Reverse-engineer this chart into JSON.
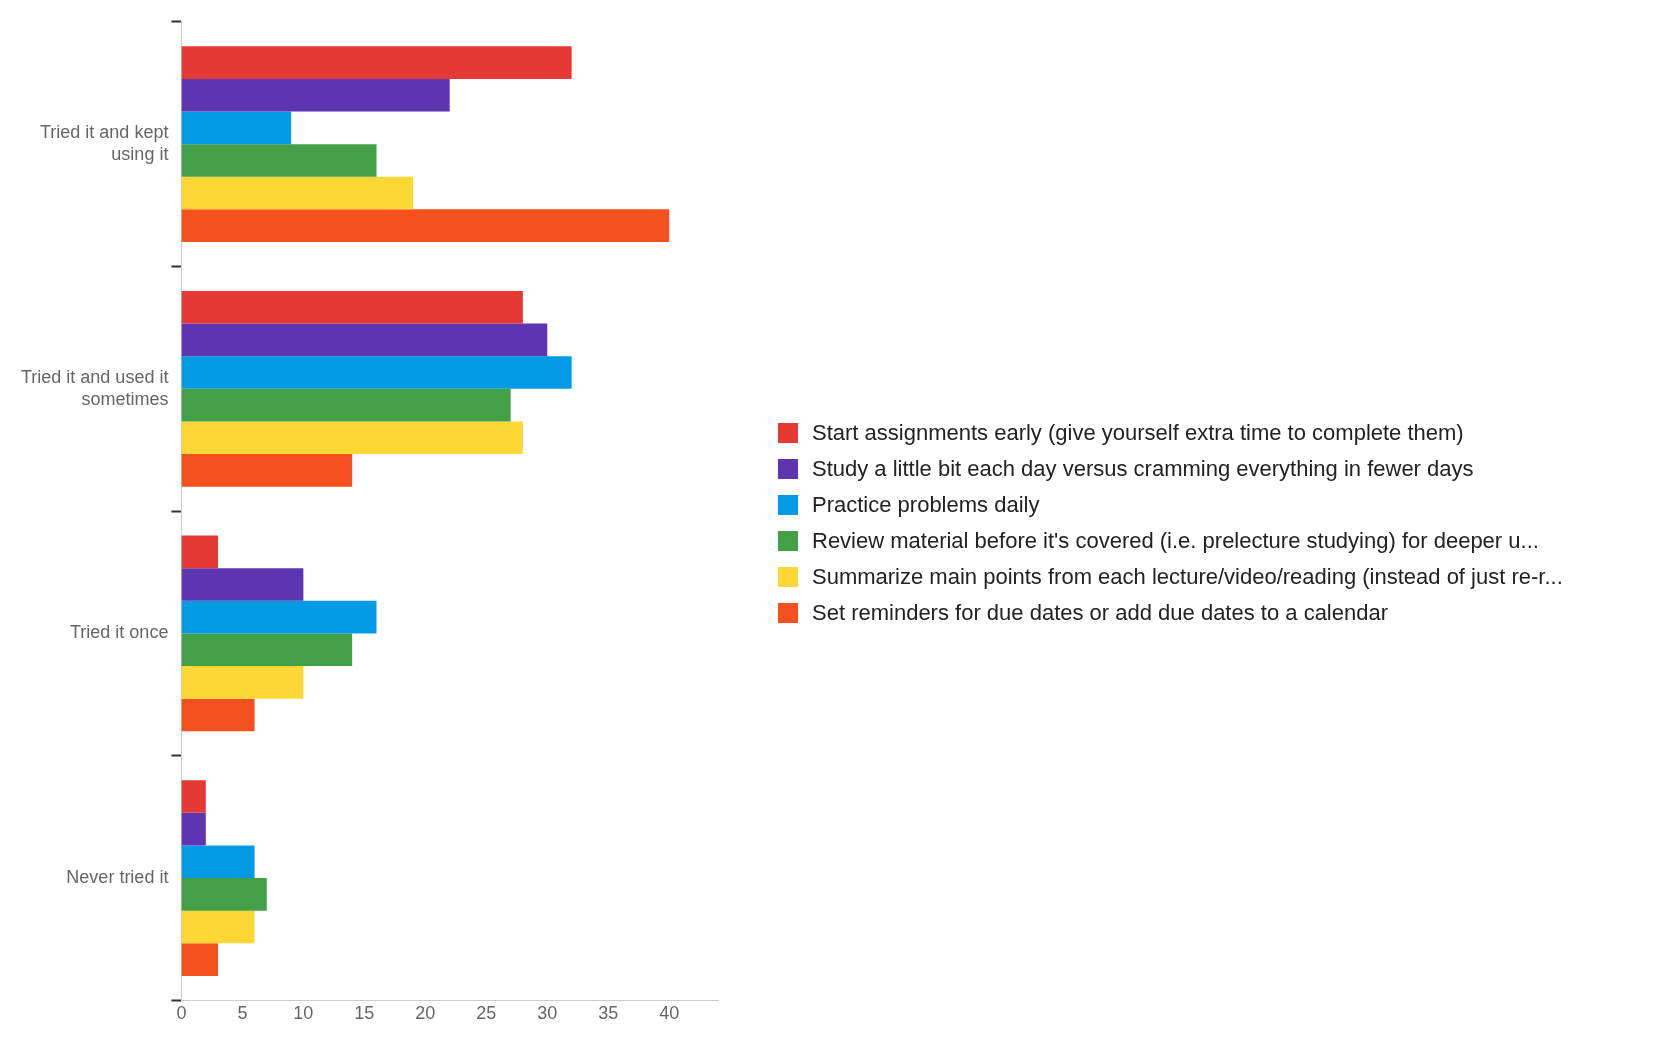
{
  "chart_data": {
    "type": "bar",
    "orientation": "horizontal",
    "categories": [
      "Tried it and kept using it",
      "Tried it and used it sometimes",
      "Tried it once",
      "Never tried it"
    ],
    "series": [
      {
        "name": "Start assignments early (give yourself extra time to complete them)",
        "color": "#e53935",
        "values": [
          32,
          28,
          3,
          2
        ]
      },
      {
        "name": "Study a little bit each day versus cramming everything in fewer days",
        "color": "#5e35b1",
        "values": [
          22,
          30,
          10,
          2
        ]
      },
      {
        "name": "Practice problems daily",
        "color": "#039be5",
        "values": [
          9,
          32,
          16,
          6
        ]
      },
      {
        "name": "Review material before it's covered (i.e. prelecture studying) for deeper u...",
        "color": "#43a047",
        "values": [
          16,
          27,
          14,
          7
        ]
      },
      {
        "name": "Summarize main points from each lecture/video/reading (instead of just re-r...",
        "color": "#fdd835",
        "values": [
          19,
          28,
          10,
          6
        ]
      },
      {
        "name": "Set reminders for due dates or add due dates to a calendar",
        "color": "#f4511e",
        "values": [
          40,
          14,
          6,
          3
        ]
      }
    ],
    "xlim": [
      0,
      44
    ],
    "xticks": [
      0,
      5,
      10,
      15,
      20,
      25,
      30,
      35,
      40
    ],
    "grid": false,
    "legend": "right"
  }
}
